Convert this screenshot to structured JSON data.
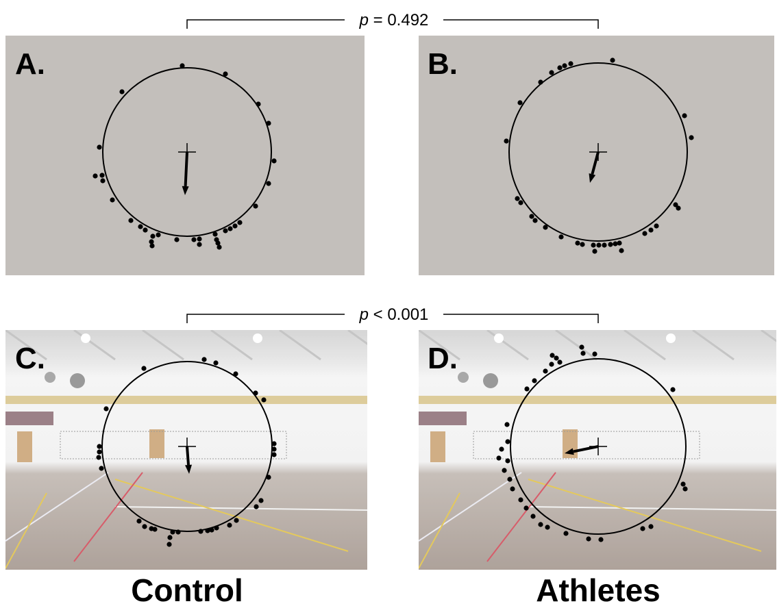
{
  "brackets": [
    {
      "symbol": "p",
      "text": "= 0.492"
    },
    {
      "symbol": "p",
      "text": "< 0.001"
    }
  ],
  "panels": [
    {
      "label": "A."
    },
    {
      "label": "B."
    },
    {
      "label": "C."
    },
    {
      "label": "D."
    }
  ],
  "groups": [
    "Control",
    "Athletes"
  ]
}
